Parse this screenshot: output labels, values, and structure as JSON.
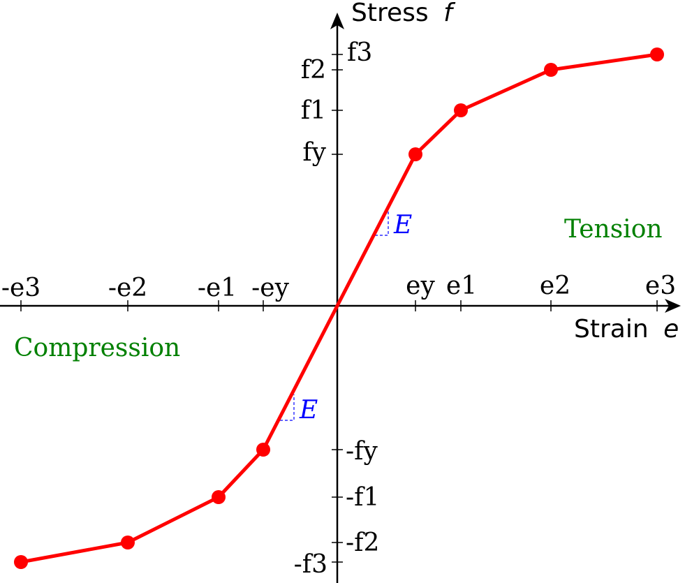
{
  "axes": {
    "x_title": "Strain",
    "x_symbol": "e",
    "y_title": "Stress",
    "y_symbol": "f"
  },
  "x_ticks": [
    "-e3",
    "-e2",
    "-e1",
    "-ey",
    "ey",
    "e1",
    "e2",
    "e3"
  ],
  "y_ticks": [
    "f3",
    "f2",
    "f1",
    "fy",
    "-fy",
    "-f1",
    "-f2",
    "-f3"
  ],
  "regions": {
    "tension": "Tension",
    "compression": "Compression"
  },
  "slope_labels": {
    "tension": "E",
    "compression": "E"
  },
  "colors": {
    "curve": "#ff0000",
    "axes": "#000000",
    "regions": "#008000",
    "slope": "#0000ff"
  },
  "curve_points": [
    {
      "x": "-e3",
      "y": "-f3"
    },
    {
      "x": "-e2",
      "y": "-f2"
    },
    {
      "x": "-e1",
      "y": "-f1"
    },
    {
      "x": "-ey",
      "y": "-fy"
    },
    {
      "x": "0",
      "y": "0"
    },
    {
      "x": "ey",
      "y": "fy"
    },
    {
      "x": "e1",
      "y": "f1"
    },
    {
      "x": "e2",
      "y": "f2"
    },
    {
      "x": "e3",
      "y": "f3"
    }
  ]
}
